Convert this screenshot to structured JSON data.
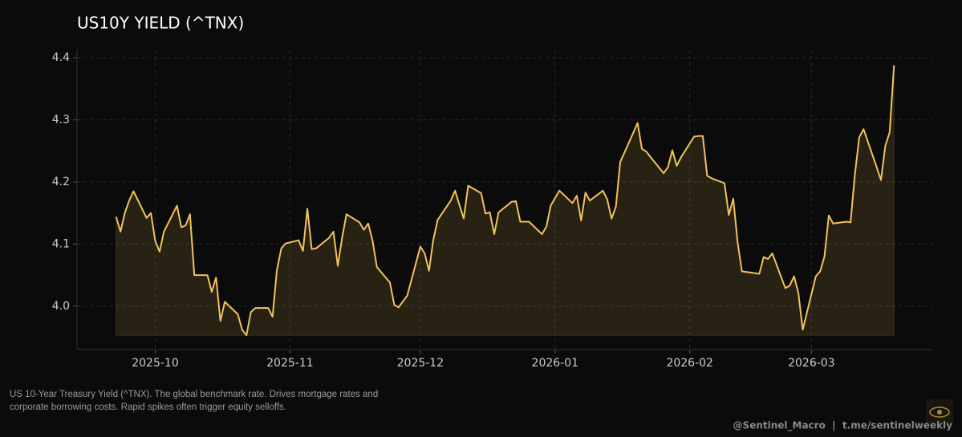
{
  "chart_data": {
    "type": "line",
    "title": "US10Y YIELD (^TNX)",
    "subtitle": "US 10-Year Treasury Yield (^TNX). The global benchmark rate. Drives mortgage rates and corporate borrowing costs. Rapid spikes often trigger equity selloffs.",
    "annotations": [
      "@Sentinel_Macro  |  t.me/sentinelweekly"
    ],
    "x": [
      "2025-09-22",
      "2025-09-23",
      "2025-09-24",
      "2025-09-25",
      "2025-09-26",
      "2025-09-29",
      "2025-09-30",
      "2025-10-01",
      "2025-10-02",
      "2025-10-03",
      "2025-10-06",
      "2025-10-07",
      "2025-10-08",
      "2025-10-09",
      "2025-10-10",
      "2025-10-13",
      "2025-10-14",
      "2025-10-15",
      "2025-10-16",
      "2025-10-17",
      "2025-10-20",
      "2025-10-21",
      "2025-10-22",
      "2025-10-23",
      "2025-10-24",
      "2025-10-27",
      "2025-10-28",
      "2025-10-29",
      "2025-10-30",
      "2025-10-31",
      "2025-11-03",
      "2025-11-04",
      "2025-11-05",
      "2025-11-06",
      "2025-11-07",
      "2025-11-10",
      "2025-11-11",
      "2025-11-12",
      "2025-11-13",
      "2025-11-14",
      "2025-11-17",
      "2025-11-18",
      "2025-11-19",
      "2025-11-20",
      "2025-11-21",
      "2025-11-24",
      "2025-11-25",
      "2025-11-26",
      "2025-11-28",
      "2025-12-01",
      "2025-12-02",
      "2025-12-03",
      "2025-12-04",
      "2025-12-05",
      "2025-12-08",
      "2025-12-09",
      "2025-12-10",
      "2025-12-11",
      "2025-12-12",
      "2025-12-15",
      "2025-12-16",
      "2025-12-17",
      "2025-12-18",
      "2025-12-19",
      "2025-12-22",
      "2025-12-23",
      "2025-12-24",
      "2025-12-26",
      "2025-12-29",
      "2025-12-30",
      "2025-12-31",
      "2026-01-02",
      "2026-01-05",
      "2026-01-06",
      "2026-01-07",
      "2026-01-08",
      "2026-01-09",
      "2026-01-12",
      "2026-01-13",
      "2026-01-14",
      "2026-01-15",
      "2026-01-16",
      "2026-01-20",
      "2026-01-21",
      "2026-01-22",
      "2026-01-23",
      "2026-01-26",
      "2026-01-27",
      "2026-01-28",
      "2026-01-29",
      "2026-01-30",
      "2026-02-02",
      "2026-02-03",
      "2026-02-04",
      "2026-02-05",
      "2026-02-06",
      "2026-02-09",
      "2026-02-10",
      "2026-02-11",
      "2026-02-12",
      "2026-02-13",
      "2026-02-17",
      "2026-02-18",
      "2026-02-19",
      "2026-02-20",
      "2026-02-23",
      "2026-02-24",
      "2026-02-25",
      "2026-02-26",
      "2026-02-27",
      "2026-03-02",
      "2026-03-03",
      "2026-03-04",
      "2026-03-05",
      "2026-03-06",
      "2026-03-09",
      "2026-03-10",
      "2026-03-11",
      "2026-03-12",
      "2026-03-13",
      "2026-03-16",
      "2026-03-17",
      "2026-03-18",
      "2026-03-19",
      "2026-03-20"
    ],
    "series": [
      {
        "name": "US10Y",
        "color": "#f2c25c",
        "values": [
          4.144,
          4.12,
          4.15,
          4.17,
          4.185,
          4.142,
          4.15,
          4.105,
          4.088,
          4.12,
          4.162,
          4.127,
          4.13,
          4.148,
          4.05,
          4.05,
          4.023,
          4.046,
          3.976,
          4.007,
          3.987,
          3.962,
          3.953,
          3.99,
          3.997,
          3.997,
          3.983,
          4.058,
          4.093,
          4.101,
          4.106,
          4.089,
          4.157,
          4.092,
          4.093,
          4.11,
          4.12,
          4.065,
          4.11,
          4.148,
          4.135,
          4.123,
          4.133,
          4.106,
          4.063,
          4.038,
          4.002,
          3.998,
          4.017,
          4.096,
          4.085,
          4.057,
          4.107,
          4.139,
          4.17,
          4.186,
          4.163,
          4.141,
          4.194,
          4.182,
          4.149,
          4.151,
          4.116,
          4.151,
          4.168,
          4.169,
          4.136,
          4.136,
          4.116,
          4.128,
          4.162,
          4.186,
          4.166,
          4.178,
          4.138,
          4.183,
          4.17,
          4.186,
          4.172,
          4.141,
          4.16,
          4.232,
          4.295,
          4.253,
          4.249,
          4.24,
          4.214,
          4.224,
          4.251,
          4.226,
          4.24,
          4.273,
          4.274,
          4.274,
          4.21,
          4.206,
          4.198,
          4.147,
          4.173,
          4.103,
          4.056,
          4.052,
          4.079,
          4.076,
          4.085,
          4.029,
          4.033,
          4.048,
          4.021,
          3.962,
          4.048,
          4.056,
          4.08,
          4.146,
          4.133,
          4.136,
          4.135,
          4.212,
          4.272,
          4.285,
          4.224,
          4.203,
          4.258,
          4.28,
          4.388
        ]
      }
    ],
    "xlim": [
      "2025-09-13",
      "2026-03-29"
    ],
    "xticks": [
      {
        "value": "2025-10-01",
        "label": "2025-10"
      },
      {
        "value": "2025-11-01",
        "label": "2025-11"
      },
      {
        "value": "2025-12-01",
        "label": "2025-12"
      },
      {
        "value": "2026-01-01",
        "label": "2026-01"
      },
      {
        "value": "2026-02-01",
        "label": "2026-02"
      },
      {
        "value": "2026-03-01",
        "label": "2026-03"
      }
    ],
    "ylim": [
      3.93,
      4.413
    ],
    "yticks": [
      {
        "value": 4,
        "label": "4.0"
      },
      4.1,
      4.2,
      4.3,
      4.4
    ],
    "grid": true
  }
}
